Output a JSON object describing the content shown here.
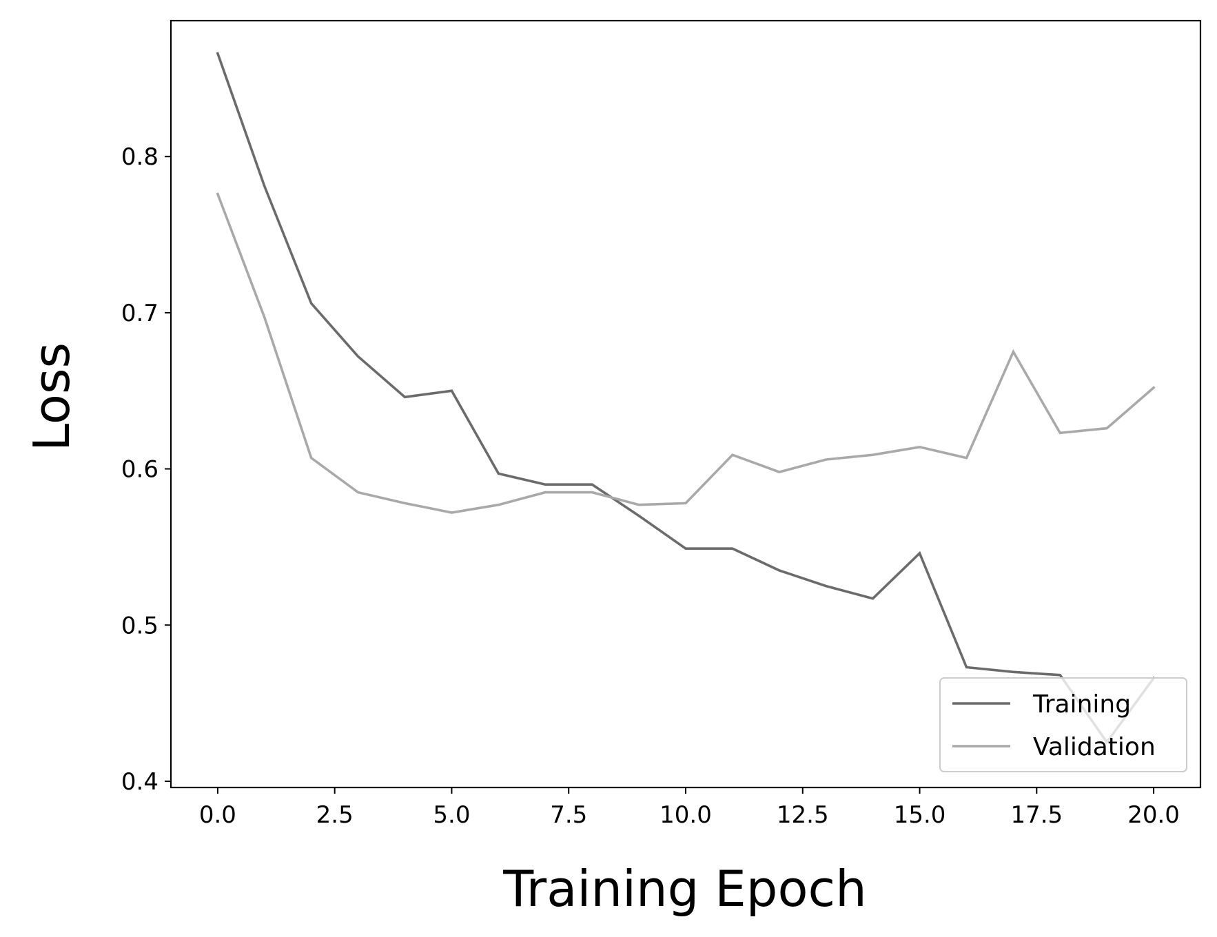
{
  "chart_data": {
    "type": "line",
    "title": "",
    "xlabel": "Training Epoch",
    "ylabel": "Loss",
    "xlim": [
      -1,
      21
    ],
    "ylim": [
      0.396,
      0.887
    ],
    "x_ticks": [
      0,
      2.5,
      5,
      7.5,
      10,
      12.5,
      15,
      17.5,
      20
    ],
    "x_tick_labels": [
      "0.0",
      "2.5",
      "5.0",
      "7.5",
      "10.0",
      "12.5",
      "15.0",
      "17.5",
      "20.0"
    ],
    "y_ticks": [
      0.4,
      0.5,
      0.6,
      0.7,
      0.8
    ],
    "y_tick_labels": [
      "0.4",
      "0.5",
      "0.6",
      "0.7",
      "0.8"
    ],
    "grid": false,
    "legend_position": "lower-right",
    "x": [
      0,
      1,
      2,
      3,
      4,
      5,
      6,
      7,
      8,
      9,
      10,
      11,
      12,
      13,
      14,
      15,
      16,
      17,
      18,
      19,
      20
    ],
    "series": [
      {
        "name": "Training",
        "color": "#6b6b6b",
        "values": [
          0.866,
          0.781,
          0.706,
          0.672,
          0.646,
          0.65,
          0.597,
          0.59,
          0.59,
          0.57,
          0.549,
          0.549,
          0.535,
          0.525,
          0.517,
          0.546,
          0.473,
          0.47,
          0.468,
          0.425,
          0.466
        ]
      },
      {
        "name": "Validation",
        "color": "#a9a9a9",
        "values": [
          0.776,
          0.697,
          0.607,
          0.585,
          0.578,
          0.572,
          0.577,
          0.585,
          0.585,
          0.577,
          0.578,
          0.609,
          0.598,
          0.606,
          0.609,
          0.614,
          0.607,
          0.675,
          0.623,
          0.626,
          0.652
        ]
      }
    ]
  }
}
